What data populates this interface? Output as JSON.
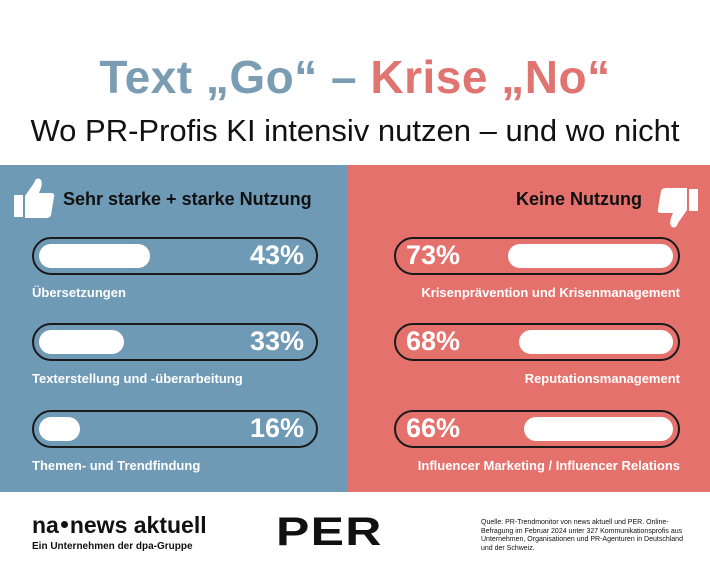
{
  "title": {
    "part1": "Text „Go“",
    "dash": " – ",
    "part2": "Krise „No“"
  },
  "subtitle": "Wo PR-Profis KI intensiv nutzen – und wo nicht",
  "colors": {
    "blue": "#6f9ab6",
    "red": "#e4716c",
    "title_blue": "#7a9db3",
    "title_red": "#e07470"
  },
  "chart_data": [
    {
      "type": "bar",
      "title": "Sehr starke + starke Nutzung",
      "icon": "thumbs-up-icon",
      "categories": [
        "Übersetzungen",
        "Texterstellung und -überarbeitung",
        "Themen- und Trendfindung"
      ],
      "values": [
        43,
        33,
        16
      ],
      "value_labels": [
        "43%",
        "33%",
        "16%"
      ],
      "unit": "%",
      "ylim": [
        0,
        100
      ]
    },
    {
      "type": "bar",
      "title": "Keine Nutzung",
      "icon": "thumbs-down-icon",
      "categories": [
        "Krisenprävention und Krisenmanagement",
        "Reputationsmanagement",
        "Influencer Marketing / Influencer Relations"
      ],
      "values": [
        73,
        68,
        66
      ],
      "value_labels": [
        "73%",
        "68%",
        "66%"
      ],
      "unit": "%",
      "ylim": [
        0,
        100
      ]
    }
  ],
  "footer": {
    "logo_na": "na",
    "logo_news": "news aktuell",
    "logo_sub": "Ein Unternehmen der dpa-Gruppe",
    "logo_per": "PER",
    "source": "Quelle: PR-Trendmonitor von news aktuell und PER. Online-Befragung im Februar 2024 unter 327 Kommunikationsprofis aus Unternehmen, Organisationen und PR-Agenturen in Deutschland und der Schweiz."
  }
}
